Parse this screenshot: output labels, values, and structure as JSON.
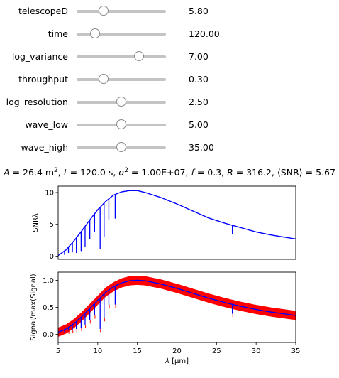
{
  "sliders": [
    {
      "name": "telescopeD",
      "value_text": "5.80",
      "position": 0.3
    },
    {
      "name": "time",
      "value_text": "120.00",
      "position": 0.21
    },
    {
      "name": "log_variance",
      "value_text": "7.00",
      "position": 0.7
    },
    {
      "name": "throughput",
      "value_text": "0.30",
      "position": 0.3
    },
    {
      "name": "log_resolution",
      "value_text": "2.50",
      "position": 0.5
    },
    {
      "name": "wave_low",
      "value_text": "5.00",
      "position": 0.5
    },
    {
      "name": "wave_high",
      "value_text": "35.00",
      "position": 0.5
    }
  ],
  "formula": {
    "a_var": "A",
    "a_val": " = 26.4 m",
    "t_var": "t",
    "t_val": " = 120.0 s, ",
    "s_var": "σ",
    "s_val": " = 1.00E+07, ",
    "f_var": "f",
    "f_val": " = 0.3, ",
    "r_var": "R",
    "r_val": " = 316.2, ⟨SNR⟩ =  5.67",
    "sup2": "2"
  },
  "colors": {
    "blue": "#0000ff",
    "red": "#ff0000",
    "axis": "#000000"
  },
  "chart_data": [
    {
      "type": "line",
      "ylabel": "SNRλ",
      "xlim": [
        5,
        35
      ],
      "ylim": [
        -0.5,
        11
      ],
      "yticks": [
        0,
        5,
        10
      ],
      "series": [
        {
          "color": "#0000ff",
          "x": [
            5,
            6,
            7,
            8,
            9,
            10,
            11,
            12,
            13,
            14,
            15,
            16,
            18,
            20,
            22,
            24,
            26,
            28,
            30,
            32,
            35
          ],
          "values": [
            0.1,
            1.0,
            2.4,
            4.0,
            5.7,
            7.3,
            8.6,
            9.6,
            10.1,
            10.3,
            10.3,
            10.0,
            9.2,
            8.2,
            7.1,
            6.0,
            5.2,
            4.5,
            3.8,
            3.3,
            2.7
          ]
        }
      ],
      "dips": [
        {
          "x": 5.8,
          "y": 0.2
        },
        {
          "x": 6.3,
          "y": 0.5
        },
        {
          "x": 6.8,
          "y": 0.6
        },
        {
          "x": 7.3,
          "y": 0.5
        },
        {
          "x": 7.9,
          "y": 0.8
        },
        {
          "x": 8.4,
          "y": 1.5
        },
        {
          "x": 9.0,
          "y": 2.7
        },
        {
          "x": 9.6,
          "y": 3.8
        },
        {
          "x": 10.3,
          "y": 1.1
        },
        {
          "x": 10.8,
          "y": 3.0
        },
        {
          "x": 11.4,
          "y": 5.8
        },
        {
          "x": 12.2,
          "y": 5.9
        },
        {
          "x": 27.0,
          "y": 3.5
        }
      ]
    },
    {
      "type": "line",
      "ylabel": "Signal/max(Signal)",
      "xlabel_var": "λ",
      "xlabel_unit": " [μm]",
      "xlim": [
        5,
        35
      ],
      "ylim": [
        -0.15,
        1.15
      ],
      "yticks": [
        0.0,
        0.5,
        1.0
      ],
      "ytick_labels": [
        "0.0",
        "0.5",
        "1.0"
      ],
      "xticks": [
        5,
        10,
        15,
        20,
        25,
        30,
        35
      ],
      "series": [
        {
          "color": "#0000ff",
          "x": [
            5,
            6,
            7,
            8,
            9,
            10,
            11,
            12,
            13,
            14,
            15,
            16,
            18,
            20,
            22,
            24,
            26,
            28,
            30,
            32,
            35
          ],
          "values": [
            0.04,
            0.1,
            0.2,
            0.33,
            0.48,
            0.63,
            0.78,
            0.88,
            0.95,
            0.99,
            1.0,
            0.99,
            0.93,
            0.85,
            0.76,
            0.67,
            0.59,
            0.52,
            0.46,
            0.41,
            0.35
          ]
        }
      ],
      "noise_band": 0.085,
      "dips": [
        {
          "x": 5.8,
          "y": 0.04
        },
        {
          "x": 6.3,
          "y": 0.07
        },
        {
          "x": 6.8,
          "y": 0.08
        },
        {
          "x": 7.3,
          "y": 0.1
        },
        {
          "x": 7.9,
          "y": 0.12
        },
        {
          "x": 8.4,
          "y": 0.18
        },
        {
          "x": 9.0,
          "y": 0.26
        },
        {
          "x": 9.6,
          "y": 0.35
        },
        {
          "x": 10.3,
          "y": 0.1
        },
        {
          "x": 10.8,
          "y": 0.3
        },
        {
          "x": 11.4,
          "y": 0.55
        },
        {
          "x": 12.2,
          "y": 0.55
        },
        {
          "x": 27.0,
          "y": 0.38
        }
      ]
    }
  ]
}
